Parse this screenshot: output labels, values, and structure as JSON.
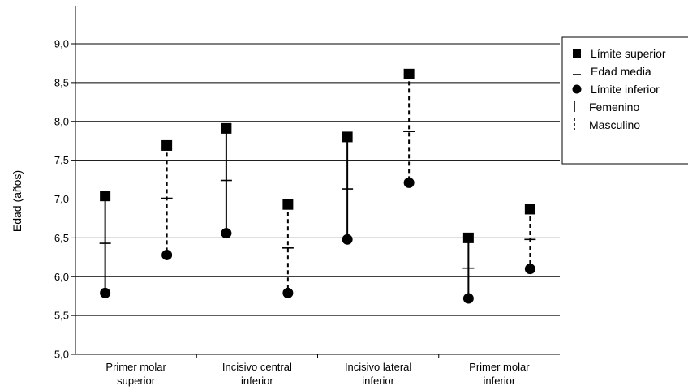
{
  "chart_data": {
    "type": "range",
    "ylabel": "Edad (años)",
    "xlabel": "",
    "ylim": [
      5.0,
      9.0
    ],
    "yticks": [
      "5,0",
      "5,5",
      "6,0",
      "6,5",
      "7,0",
      "7,5",
      "8,0",
      "8,5",
      "9,0"
    ],
    "grid": true,
    "legend_position": "right",
    "categories": [
      {
        "line1": "Primer molar",
        "line2": "superior"
      },
      {
        "line1": "Incisivo central",
        "line2": "inferior"
      },
      {
        "line1": "Incisivo lateral",
        "line2": "inferior"
      },
      {
        "line1": "Primer molar",
        "line2": "inferior"
      }
    ],
    "series": [
      {
        "name": "Femenino",
        "line_style": "solid",
        "upper": [
          7.04,
          7.91,
          7.8,
          6.5
        ],
        "mean": [
          6.43,
          7.24,
          7.13,
          6.11
        ],
        "lower": [
          5.79,
          6.56,
          6.48,
          5.72
        ]
      },
      {
        "name": "Masculino",
        "line_style": "dashed",
        "upper": [
          7.69,
          6.93,
          8.61,
          6.87
        ],
        "mean": [
          7.01,
          6.37,
          7.87,
          6.48
        ],
        "lower": [
          6.28,
          5.79,
          7.21,
          6.1
        ]
      }
    ],
    "legend": [
      {
        "symbol": "square",
        "label": "Límite superior"
      },
      {
        "symbol": "dash",
        "label": "Edad media"
      },
      {
        "symbol": "circle",
        "label": "Límite inferior"
      },
      {
        "symbol": "solid-line",
        "label": "Femenino"
      },
      {
        "symbol": "dashed-line",
        "label": "Masculino"
      }
    ],
    "colors": {
      "marks": "#000000",
      "grid": "#000000",
      "background": "#ffffff"
    }
  }
}
